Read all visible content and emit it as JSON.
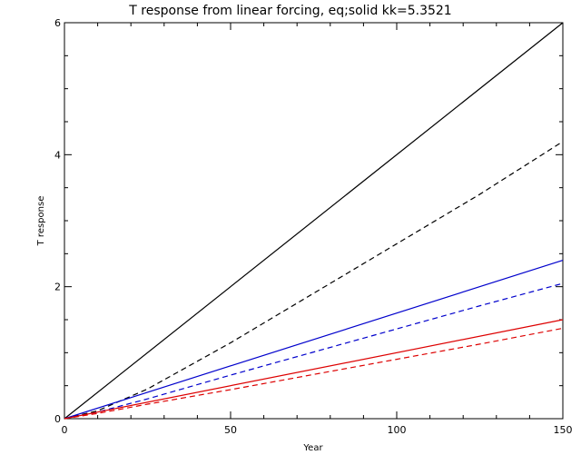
{
  "chart_data": {
    "type": "line",
    "title": "T response from linear forcing, eq;solid kk=5.3521",
    "xlabel": "Year",
    "ylabel": "T response",
    "xlim": [
      0,
      150
    ],
    "ylim": [
      0,
      6
    ],
    "xticks": [
      0,
      50,
      100,
      150
    ],
    "yticks": [
      0,
      2,
      4,
      6
    ],
    "grid": false,
    "legend": "none",
    "series": [
      {
        "color": "#000000",
        "dash": "solid",
        "x": [
          0,
          150
        ],
        "y": [
          0,
          6.0
        ]
      },
      {
        "color": "#000000",
        "dash": "dashed",
        "x": [
          0,
          10,
          25,
          50,
          75,
          100,
          125,
          150
        ],
        "y": [
          0,
          0.12,
          0.45,
          1.15,
          1.9,
          2.65,
          3.4,
          4.2
        ]
      },
      {
        "color": "#0000cc",
        "dash": "solid",
        "x": [
          0,
          150
        ],
        "y": [
          0,
          2.4
        ]
      },
      {
        "color": "#0000cc",
        "dash": "dashed",
        "x": [
          0,
          10,
          25,
          50,
          75,
          100,
          125,
          150
        ],
        "y": [
          0,
          0.1,
          0.3,
          0.66,
          1.01,
          1.36,
          1.71,
          2.05
        ]
      },
      {
        "color": "#dd0000",
        "dash": "solid",
        "x": [
          0,
          150
        ],
        "y": [
          0,
          1.5
        ]
      },
      {
        "color": "#dd0000",
        "dash": "dashed",
        "x": [
          0,
          10,
          25,
          50,
          75,
          100,
          125,
          150
        ],
        "y": [
          0,
          0.08,
          0.22,
          0.44,
          0.67,
          0.9,
          1.13,
          1.37
        ]
      }
    ]
  }
}
